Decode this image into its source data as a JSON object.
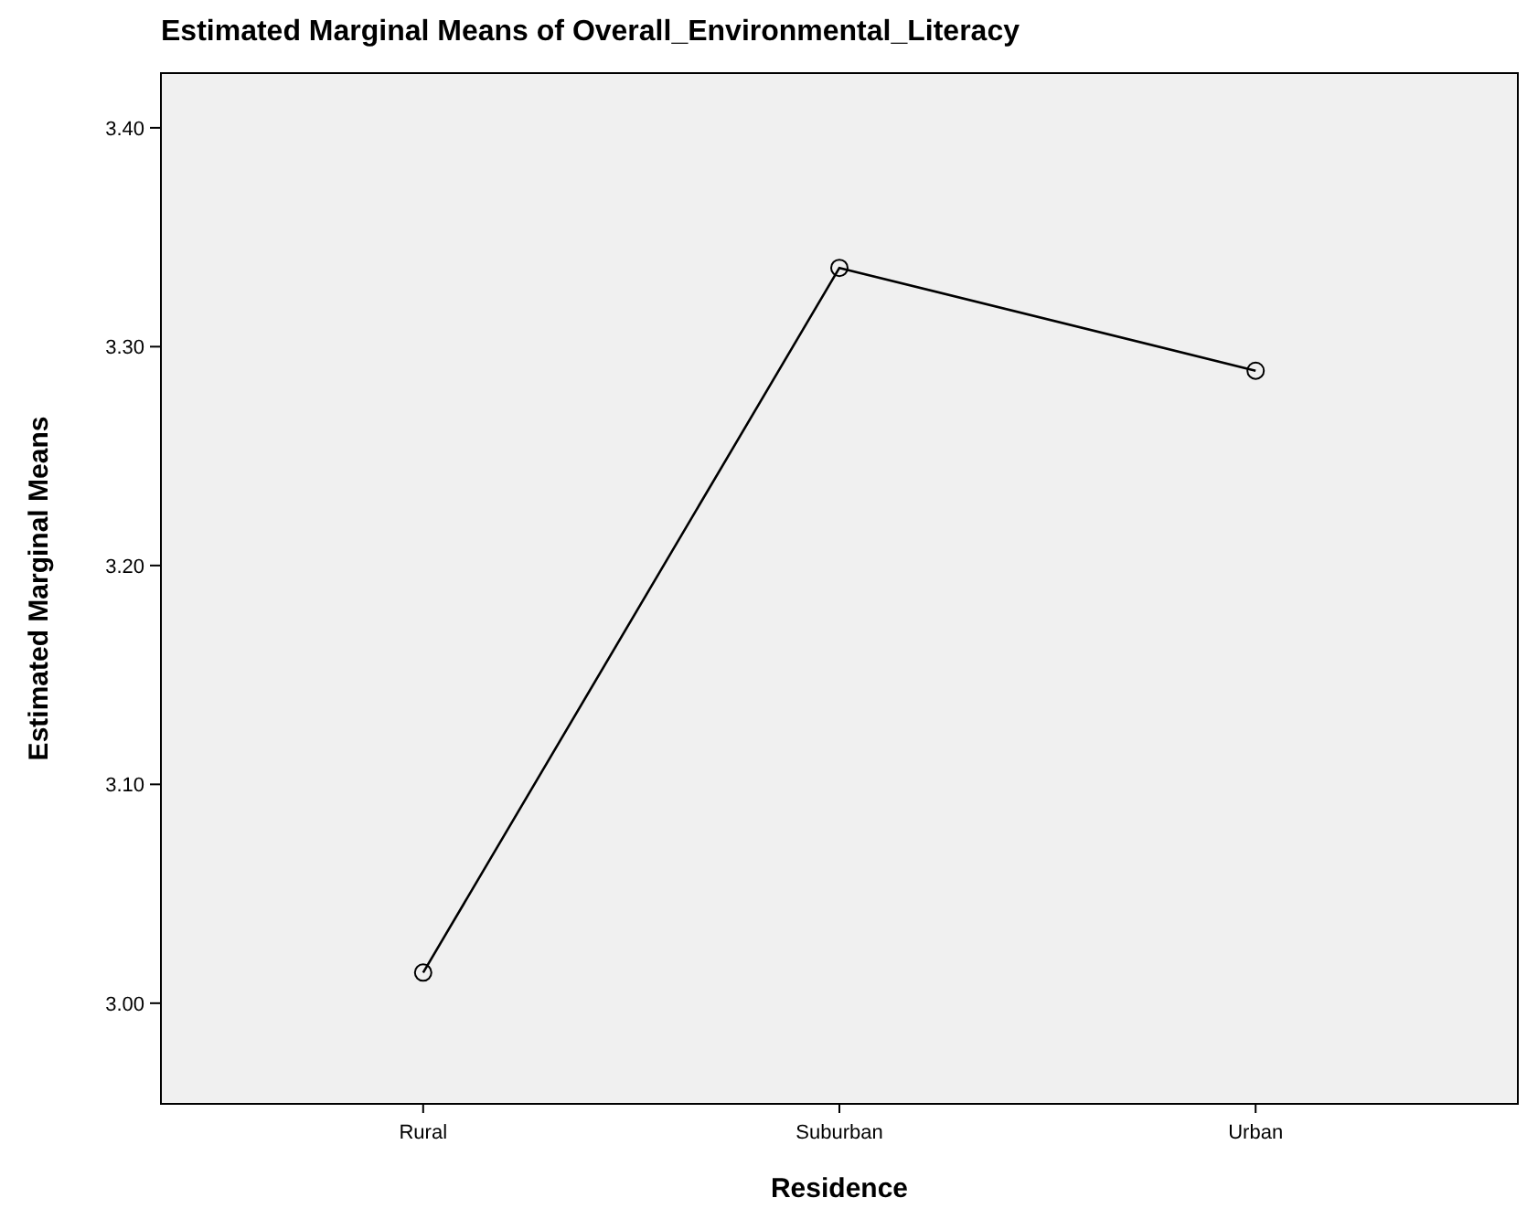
{
  "chart_data": {
    "type": "line",
    "title": "Estimated Marginal Means of Overall_Environmental_Literacy",
    "xlabel": "Residence",
    "ylabel": "Estimated Marginal Means",
    "categories": [
      "Rural",
      "Suburban",
      "Urban"
    ],
    "series": [
      {
        "color": "#000000",
        "values": [
          3.014,
          3.336,
          3.289
        ]
      }
    ],
    "ylim": [
      2.954,
      3.425
    ],
    "yticks": [
      {
        "value": 3.0,
        "label": "3.00"
      },
      {
        "value": 3.1,
        "label": "3.10"
      },
      {
        "value": 3.2,
        "label": "3.20"
      },
      {
        "value": 3.3,
        "label": "3.30"
      },
      {
        "value": 3.4,
        "label": "3.40"
      }
    ],
    "grid": false,
    "marker": "circle",
    "line_style": "solid"
  }
}
